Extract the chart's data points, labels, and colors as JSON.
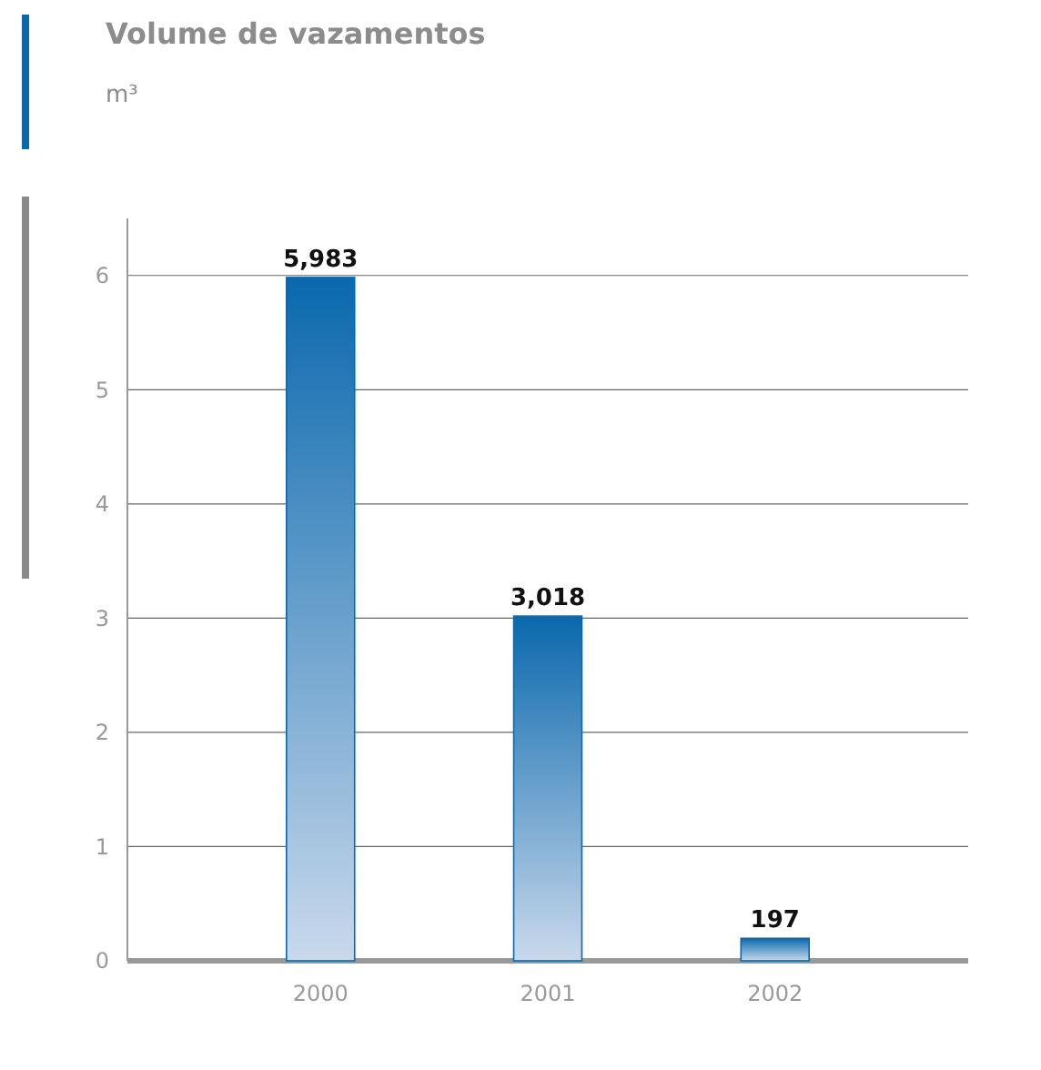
{
  "chart_data": {
    "type": "bar",
    "title": "Volume de vazamentos",
    "subtitle": "m³",
    "categories": [
      "2000",
      "2001",
      "2002"
    ],
    "values": [
      5.983,
      3.018,
      0.197
    ],
    "annotations": [
      {
        "text": "5,983",
        "x": "2000",
        "y": 5.983
      },
      {
        "text": "3,018",
        "x": "2001",
        "y": 3.018
      },
      {
        "text": "197",
        "x": "2002",
        "y": 0.197
      }
    ],
    "color": "#0a68ad",
    "ylim": [
      0,
      6.5
    ],
    "yticks": [
      0,
      1,
      2,
      3,
      4,
      5,
      6
    ],
    "grid": "y"
  }
}
